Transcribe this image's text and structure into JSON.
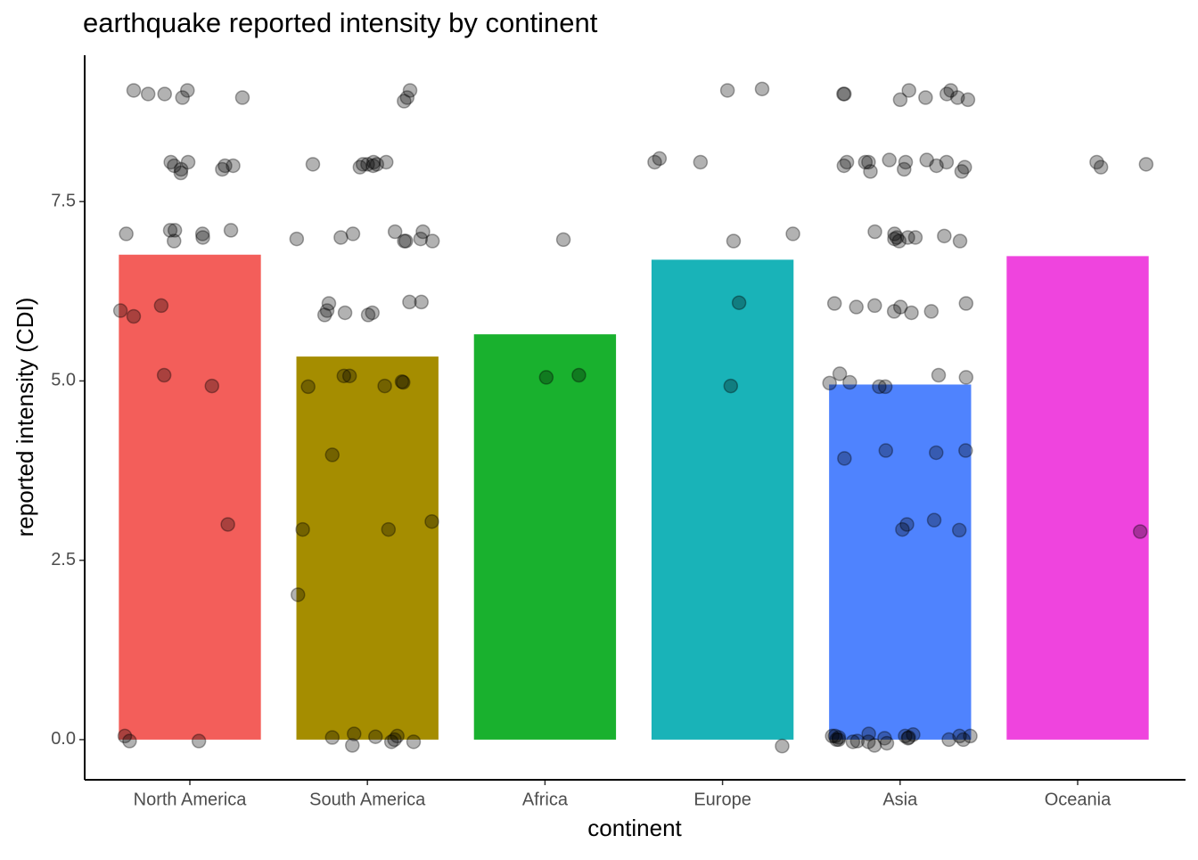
{
  "chart_data": {
    "type": "bar",
    "title": "earthquake reported intensity by continent",
    "x_label": "continent",
    "y_label": "reported intensity (CDI)",
    "categories": [
      "North America",
      "South America",
      "Africa",
      "Europe",
      "Asia",
      "Oceania"
    ],
    "values": [
      6.76,
      5.34,
      5.65,
      6.69,
      4.95,
      6.74
    ],
    "colors": [
      "#f35e5a",
      "#a58d00",
      "#19b12e",
      "#19b3b8",
      "#4f83fe",
      "#ef44de"
    ],
    "points": [
      [
        9.05,
        9.05,
        9.0,
        8.95,
        9.0,
        8.95,
        8.0,
        8.0,
        7.95,
        8.05,
        8.05,
        8.0,
        7.95,
        7.9,
        7.1,
        7.05,
        7.1,
        7.0,
        7.05,
        6.95,
        7.1,
        6.05,
        5.9,
        5.98,
        5.08,
        4.93,
        3.0,
        0.05,
        -0.02,
        -0.02
      ],
      [
        9.05,
        8.95,
        8.9,
        8.02,
        8.0,
        7.98,
        8.05,
        8.05,
        8.02,
        8.02,
        8.02,
        7.08,
        6.98,
        6.95,
        7.08,
        7.0,
        6.95,
        6.98,
        7.05,
        6.95,
        6.1,
        5.98,
        5.95,
        5.92,
        6.1,
        6.08,
        5.95,
        5.92,
        4.98,
        4.99,
        4.93,
        5.07,
        5.07,
        4.92,
        3.97,
        3.04,
        2.93,
        2.93,
        2.02,
        0.08,
        -0.03,
        -0.08,
        0.03,
        0.04,
        0.0,
        0.05,
        -0.03
      ],
      [
        6.97,
        5.08,
        5.05
      ],
      [
        9.07,
        9.05,
        8.1,
        8.05,
        8.05,
        6.95,
        7.05,
        6.09,
        4.93,
        -0.09
      ],
      [
        9.05,
        9.05,
        9.0,
        8.95,
        9.0,
        8.95,
        8.92,
        9.0,
        8.92,
        8.08,
        8.05,
        8.0,
        7.98,
        8.05,
        8.05,
        8.05,
        8.0,
        8.05,
        8.08,
        7.95,
        7.92,
        7.92,
        7.05,
        6.95,
        6.98,
        7.0,
        7.08,
        6.95,
        7.02,
        7.0,
        7.0,
        6.03,
        6.03,
        6.05,
        6.08,
        5.97,
        5.97,
        6.08,
        5.95,
        5.05,
        4.98,
        4.92,
        5.08,
        4.97,
        5.1,
        4.92,
        4.03,
        4.03,
        4.0,
        3.92,
        3.0,
        2.93,
        2.92,
        3.06,
        0.05,
        0.03,
        0.0,
        -0.03,
        0.05,
        0.02,
        0.0,
        -0.02,
        0.03,
        0.05,
        0.0,
        0.07,
        -0.05,
        0.02,
        0.08,
        0.05,
        -0.03,
        0.0,
        0.05,
        -0.08
      ],
      [
        8.02,
        8.05,
        7.98,
        2.9
      ]
    ],
    "ylim": [
      -0.56,
      9.54
    ],
    "yticks": [
      {
        "value": 0,
        "label": "0.0"
      },
      {
        "value": 2.5,
        "label": "2.5"
      },
      {
        "value": 5,
        "label": "5.0"
      },
      {
        "value": 7.5,
        "label": "7.5"
      }
    ]
  }
}
